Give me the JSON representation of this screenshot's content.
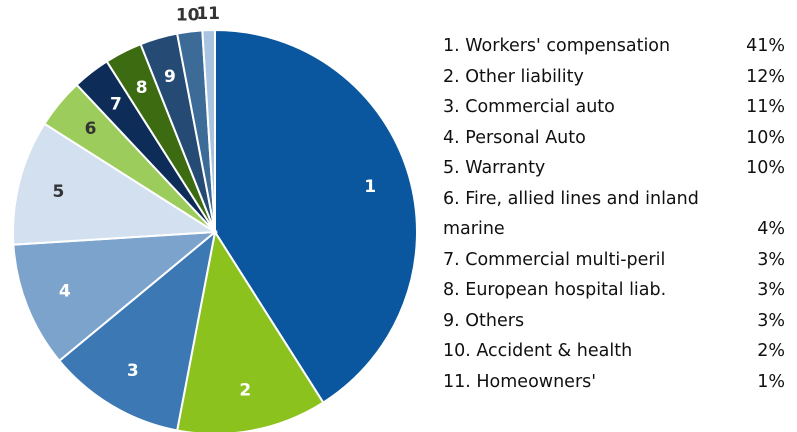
{
  "chart_data": {
    "type": "pie",
    "categories": [
      "1. Workers' compensation",
      "2. Other liability",
      "3. Commercial auto",
      "4. Personal Auto",
      "5. Warranty",
      "6. Fire, allied lines and inland marine",
      "7. Commercial multi-peril",
      "8. European hospital liab.",
      "9. Others",
      "10. Accident & health",
      "11. Homeowners'"
    ],
    "slice_labels": [
      "1",
      "2",
      "3",
      "4",
      "5",
      "6",
      "7",
      "8",
      "9",
      "10",
      "11"
    ],
    "values": [
      41,
      12,
      11,
      10,
      10,
      4,
      3,
      3,
      3,
      2,
      1
    ],
    "value_labels": [
      "41%",
      "12%",
      "11%",
      "10%",
      "10%",
      "4%",
      "3%",
      "3%",
      "3%",
      "2%",
      "1%"
    ],
    "colors": [
      "#0a57a0",
      "#8cc21e",
      "#3b78b4",
      "#7ba3cc",
      "#d2e0ef",
      "#9ccc5c",
      "#0d2c57",
      "#3d6b12",
      "#254a73",
      "#3c6b98",
      "#a8c4e0"
    ]
  }
}
